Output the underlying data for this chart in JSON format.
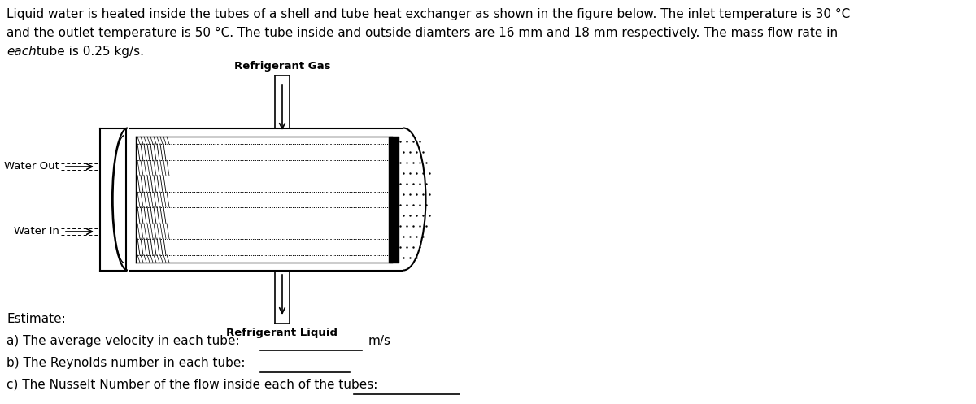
{
  "line1": "Liquid water is heated inside the tubes of a shell and tube heat exchanger as shown in the figure below. The inlet temperature is 30 °C",
  "line2": "and the outlet temperature is 50 °C. The tube inside and outside diamters are 16 mm and 18 mm respectively. The mass flow rate in",
  "line3_italic": "each",
  "line3_rest": " tube is 0.25 kg/s.",
  "refrigerant_gas_label": "Refrigerant Gas",
  "refrigerant_liquid_label": "Refrigerant Liquid",
  "water_out_label": "Water Out",
  "water_in_label": "Water In",
  "estimate_label": "Estimate:",
  "question_a": "a) The average velocity in each tube:",
  "question_b": "b) The Reynolds number in each tube:",
  "question_c": "c) The Nusselt Number of the flow inside each of the tubes:",
  "unit_a": "m/s",
  "background_color": "#ffffff",
  "text_fontsize": 11.0,
  "label_fontsize": 9.5,
  "fig_width": 12.0,
  "fig_height": 4.97
}
